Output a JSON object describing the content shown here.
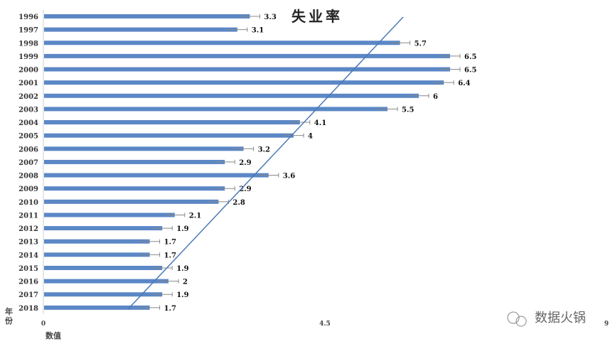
{
  "chart_data": {
    "type": "bar",
    "orientation": "horizontal",
    "title": "失业率",
    "xlabel": "数值",
    "ylabel": "年份",
    "categories": [
      "1996",
      "1997",
      "1998",
      "1999",
      "2000",
      "2001",
      "2002",
      "2003",
      "2004",
      "2005",
      "2006",
      "2007",
      "2008",
      "2009",
      "2010",
      "2011",
      "2012",
      "2013",
      "2014",
      "2015",
      "2016",
      "2017",
      "2018"
    ],
    "values": [
      3.3,
      3.1,
      5.7,
      6.5,
      6.5,
      6.4,
      6,
      5.5,
      4.1,
      4,
      3.2,
      2.9,
      3.6,
      2.9,
      2.8,
      2.1,
      1.9,
      1.7,
      1.7,
      1.9,
      2,
      1.9,
      1.7
    ],
    "xlim": [
      0,
      9
    ],
    "xticks": [
      "0",
      "4.5",
      "9"
    ],
    "error_bars": true,
    "trendline": true,
    "grid": false,
    "bar_color": "#5b87c5"
  },
  "watermark": "数据火锅"
}
